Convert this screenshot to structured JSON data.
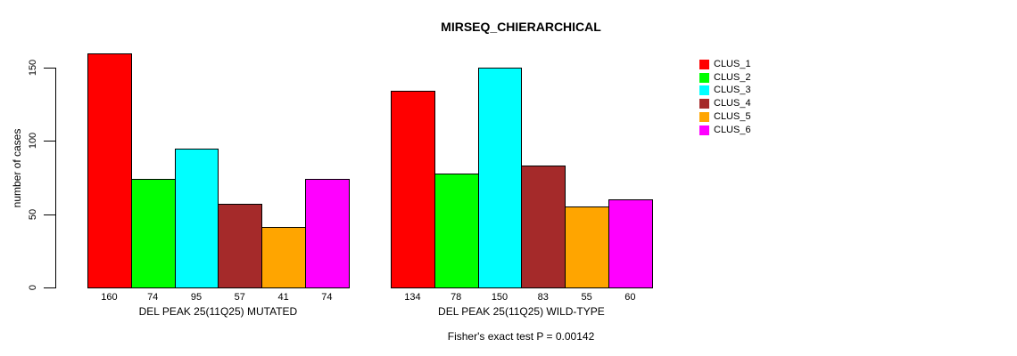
{
  "title": "MIRSEQ_CHIERARCHICAL",
  "footer": "Fisher's exact test P = 0.00142",
  "chart_data": {
    "type": "bar",
    "title": "MIRSEQ_CHIERARCHICAL",
    "ylabel": "number of cases",
    "xlabel": "",
    "ylim": [
      0,
      150
    ],
    "yticks": [
      0,
      50,
      100,
      150
    ],
    "grid": false,
    "legend_position": "right",
    "categories": [
      "DEL PEAK 25(11Q25) MUTATED",
      "DEL PEAK 25(11Q25) WILD-TYPE"
    ],
    "series": [
      {
        "name": "CLUS_1",
        "color": "#FF0000",
        "values": [
          160,
          134
        ]
      },
      {
        "name": "CLUS_2",
        "color": "#00FF00",
        "values": [
          74,
          78
        ]
      },
      {
        "name": "CLUS_3",
        "color": "#00FFFF",
        "values": [
          95,
          150
        ]
      },
      {
        "name": "CLUS_4",
        "color": "#A52A2A",
        "values": [
          57,
          83
        ]
      },
      {
        "name": "CLUS_5",
        "color": "#FFA500",
        "values": [
          41,
          55
        ]
      },
      {
        "name": "CLUS_6",
        "color": "#FF00FF",
        "values": [
          74,
          60
        ]
      }
    ],
    "bar_value_labels": [
      [
        160,
        74,
        95,
        57,
        41,
        74
      ],
      [
        134,
        78,
        150,
        83,
        55,
        60
      ]
    ],
    "annotation": "Fisher's exact test P = 0.00142"
  }
}
